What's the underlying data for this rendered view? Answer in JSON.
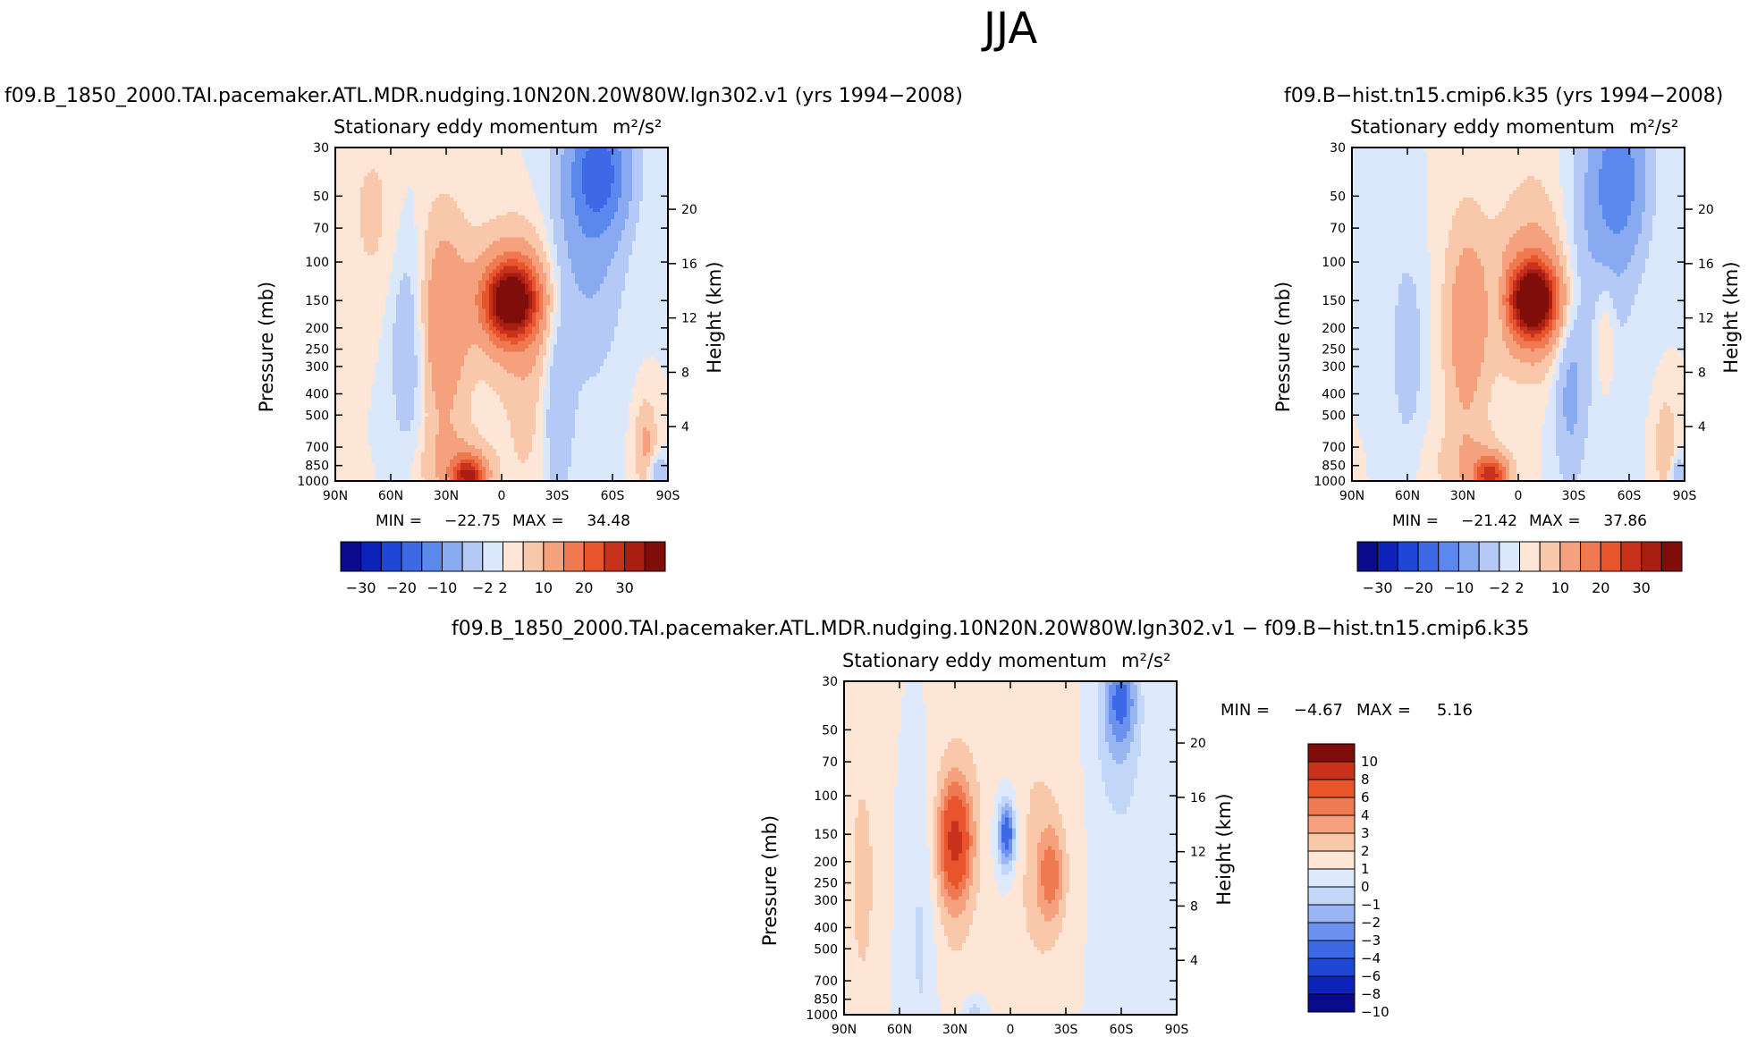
{
  "page_title": "JJA",
  "colors": {
    "ramp_full": [
      "#0a0a8c",
      "#0c22b8",
      "#1f47d6",
      "#3d69e6",
      "#5b88ec",
      "#89aaf0",
      "#b4c9f5",
      "#dbe7fb",
      "#fde6d6",
      "#f9c7aa",
      "#f5a17d",
      "#ef7a52",
      "#e8542c",
      "#c8321c",
      "#a81e12",
      "#7f0d0a"
    ],
    "ramp_diff": [
      "#0a0a8c",
      "#0c22b8",
      "#1f47d6",
      "#3d69e6",
      "#6b92ee",
      "#99b6f3",
      "#c2d6f8",
      "#deeafc",
      "#fde6d6",
      "#f9c7aa",
      "#f5a17d",
      "#ef7a52",
      "#e8542c",
      "#c8321c",
      "#7f0d0a"
    ]
  },
  "chart_data": [
    {
      "id": "panel-a",
      "type": "heatmap",
      "case_title": "f09.B_1850_2000.TAI.pacemaker.ATL.MDR.nudging.10N20N.20W80W.lgn302.v1  (yrs 1994−2008)",
      "left_label": "Stationary eddy momentum",
      "right_label": "m²/s²",
      "ylabel": "Pressure (mb)",
      "ylabel_right": "Height (km)",
      "x_ticks": [
        "90N",
        "60N",
        "30N",
        "0",
        "30S",
        "60S",
        "90S"
      ],
      "x_values": [
        90,
        60,
        30,
        0,
        -30,
        -60,
        -90
      ],
      "xlim": [
        90,
        -90
      ],
      "ylim": [
        30,
        1000
      ],
      "y_scale": "log",
      "y_ticks": [
        30,
        50,
        70,
        100,
        150,
        200,
        250,
        300,
        400,
        500,
        700,
        850,
        1000
      ],
      "height_ticks_km": [
        4,
        8,
        12,
        16,
        20
      ],
      "min_label": "MIN =",
      "min_value": "−22.75",
      "max_label": "MAX =",
      "max_value": "34.48",
      "data_min": -22.75,
      "data_max": 34.48,
      "levels": [
        -30,
        -25,
        -20,
        -15,
        -10,
        -5,
        -2,
        0,
        2,
        5,
        10,
        15,
        20,
        25,
        30
      ],
      "colorbar_labels": [
        "−30",
        "−20",
        "−10",
        "−2",
        "2",
        "10",
        "20",
        "30"
      ],
      "features": [
        {
          "lat": -5,
          "p": 150,
          "amp": 34.5,
          "wlat": 9,
          "wlogp": 0.11
        },
        {
          "lat": -5,
          "p": 150,
          "amp": 9,
          "wlat": 17,
          "wlogp": 0.22
        },
        {
          "lat": 32,
          "p": 200,
          "amp": 9,
          "wlat": 9,
          "wlogp": 0.35
        },
        {
          "lat": 50,
          "p": 250,
          "amp": -5,
          "wlat": 7,
          "wlogp": 0.35
        },
        {
          "lat": -53,
          "p": 38,
          "amp": -16,
          "wlat": 11,
          "wlogp": 0.2
        },
        {
          "lat": -45,
          "p": 90,
          "amp": -6,
          "wlat": 14,
          "wlogp": 0.4
        },
        {
          "lat": -30,
          "p": 450,
          "amp": -5,
          "wlat": 6,
          "wlogp": 0.35
        },
        {
          "lat": 18,
          "p": 950,
          "amp": 24,
          "wlat": 6,
          "wlogp": 0.06
        },
        {
          "lat": 25,
          "p": 850,
          "amp": 5,
          "wlat": 14,
          "wlogp": 0.12
        },
        {
          "lat": -15,
          "p": 350,
          "amp": 3,
          "wlat": 10,
          "wlogp": 0.4
        },
        {
          "lat": -78,
          "p": 700,
          "amp": 6,
          "wlat": 4,
          "wlogp": 0.15
        },
        {
          "lat": -84,
          "p": 930,
          "amp": -6,
          "wlat": 4,
          "wlogp": 0.06
        },
        {
          "lat": 70,
          "p": 60,
          "amp": 2.5,
          "wlat": 10,
          "wlogp": 0.3
        }
      ]
    },
    {
      "id": "panel-b",
      "type": "heatmap",
      "case_title": "f09.B−hist.tn15.cmip6.k35  (yrs 1994−2008)",
      "left_label": "Stationary eddy momentum",
      "right_label": "m²/s²",
      "ylabel": "Pressure (mb)",
      "ylabel_right": "Height (km)",
      "x_ticks": [
        "90N",
        "60N",
        "30N",
        "0",
        "30S",
        "60S",
        "90S"
      ],
      "x_values": [
        90,
        60,
        30,
        0,
        -30,
        -60,
        -90
      ],
      "xlim": [
        90,
        -90
      ],
      "ylim": [
        30,
        1000
      ],
      "y_scale": "log",
      "y_ticks": [
        30,
        50,
        70,
        100,
        150,
        200,
        250,
        300,
        400,
        500,
        700,
        850,
        1000
      ],
      "height_ticks_km": [
        4,
        8,
        12,
        16,
        20
      ],
      "min_label": "MIN =",
      "min_value": "−21.42",
      "max_label": "MAX =",
      "max_value": "37.86",
      "data_min": -21.42,
      "data_max": 37.86,
      "levels": [
        -30,
        -25,
        -20,
        -15,
        -10,
        -5,
        -2,
        0,
        2,
        5,
        10,
        15,
        20,
        25,
        30
      ],
      "colorbar_labels": [
        "−30",
        "−20",
        "−10",
        "−2",
        "2",
        "10",
        "20",
        "30"
      ],
      "features": [
        {
          "lat": -8,
          "p": 150,
          "amp": 37.9,
          "wlat": 8,
          "wlogp": 0.11
        },
        {
          "lat": -8,
          "p": 150,
          "amp": 9,
          "wlat": 16,
          "wlogp": 0.22
        },
        {
          "lat": 28,
          "p": 200,
          "amp": 8,
          "wlat": 8,
          "wlogp": 0.35
        },
        {
          "lat": 12,
          "p": 150,
          "amp": -5,
          "wlat": 3,
          "wlogp": 0.12
        },
        {
          "lat": 60,
          "p": 250,
          "amp": -4,
          "wlat": 6,
          "wlogp": 0.3
        },
        {
          "lat": -55,
          "p": 40,
          "amp": -12,
          "wlat": 10,
          "wlogp": 0.25
        },
        {
          "lat": -42,
          "p": 90,
          "amp": -5,
          "wlat": 14,
          "wlogp": 0.4
        },
        {
          "lat": -28,
          "p": 380,
          "amp": -6,
          "wlat": 6,
          "wlogp": 0.3
        },
        {
          "lat": 15,
          "p": 950,
          "amp": 21,
          "wlat": 6,
          "wlogp": 0.06
        },
        {
          "lat": 25,
          "p": 850,
          "amp": 4,
          "wlat": 14,
          "wlogp": 0.12
        },
        {
          "lat": -47,
          "p": 200,
          "amp": 4,
          "wlat": 4,
          "wlogp": 0.2
        },
        {
          "lat": -80,
          "p": 700,
          "amp": 5,
          "wlat": 4,
          "wlogp": 0.15
        },
        {
          "lat": -86,
          "p": 930,
          "amp": -6,
          "wlat": 3,
          "wlogp": 0.06
        },
        {
          "lat": -10,
          "p": 70,
          "amp": 2.5,
          "wlat": 14,
          "wlogp": 0.3
        }
      ]
    },
    {
      "id": "panel-diff",
      "type": "heatmap",
      "case_title": "f09.B_1850_2000.TAI.pacemaker.ATL.MDR.nudging.10N20N.20W80W.lgn302.v1  −  f09.B−hist.tn15.cmip6.k35",
      "left_label": "Stationary eddy momentum",
      "right_label": "m²/s²",
      "ylabel": "Pressure (mb)",
      "ylabel_right": "Height (km)",
      "x_ticks": [
        "90N",
        "60N",
        "30N",
        "0",
        "30S",
        "60S",
        "90S"
      ],
      "x_values": [
        90,
        60,
        30,
        0,
        -30,
        -60,
        -90
      ],
      "xlim": [
        90,
        -90
      ],
      "ylim": [
        30,
        1000
      ],
      "y_scale": "log",
      "y_ticks": [
        30,
        50,
        70,
        100,
        150,
        200,
        250,
        300,
        400,
        500,
        700,
        850,
        1000
      ],
      "height_ticks_km": [
        4,
        8,
        12,
        16,
        20
      ],
      "min_label": "MIN =",
      "min_value": "−4.67",
      "max_label": "MAX =",
      "max_value": "5.16",
      "data_min": -4.67,
      "data_max": 5.16,
      "levels": [
        -10,
        -8,
        -6,
        -4,
        -3,
        -2,
        -1,
        0,
        1,
        2,
        3,
        4,
        6,
        8,
        10
      ],
      "colorbar_labels": [
        "10",
        "8",
        "6",
        "4",
        "3",
        "2",
        "1",
        "0",
        "−1",
        "−2",
        "−3",
        "−4",
        "−6",
        "−8",
        "−10"
      ],
      "features": [
        {
          "lat": 30,
          "p": 160,
          "amp": 5.2,
          "wlat": 6,
          "wlogp": 0.18
        },
        {
          "lat": 30,
          "p": 200,
          "amp": 1.5,
          "wlat": 10,
          "wlogp": 0.4
        },
        {
          "lat": 2,
          "p": 150,
          "amp": -4.7,
          "wlat": 3,
          "wlogp": 0.1
        },
        {
          "lat": 2,
          "p": 150,
          "amp": -1.2,
          "wlat": 6,
          "wlogp": 0.2
        },
        {
          "lat": -22,
          "p": 230,
          "amp": 2.8,
          "wlat": 5,
          "wlogp": 0.15
        },
        {
          "lat": -15,
          "p": 250,
          "amp": 1.2,
          "wlat": 12,
          "wlogp": 0.4
        },
        {
          "lat": -60,
          "p": 36,
          "amp": -3.2,
          "wlat": 6,
          "wlogp": 0.15
        },
        {
          "lat": -57,
          "p": 50,
          "amp": -1.5,
          "wlat": 9,
          "wlogp": 0.3
        },
        {
          "lat": 80,
          "p": 240,
          "amp": 1.4,
          "wlat": 6,
          "wlogp": 0.45
        },
        {
          "lat": 48,
          "p": 400,
          "amp": -1.3,
          "wlat": 6,
          "wlogp": 0.5
        },
        {
          "lat": 20,
          "p": 980,
          "amp": -1.6,
          "wlat": 4,
          "wlogp": 0.05
        },
        {
          "lat": -70,
          "p": 300,
          "amp": -0.6,
          "wlat": 16,
          "wlogp": 0.6
        },
        {
          "lat": 0,
          "p": 60,
          "amp": 0.5,
          "wlat": 25,
          "wlogp": 0.4
        }
      ]
    }
  ]
}
